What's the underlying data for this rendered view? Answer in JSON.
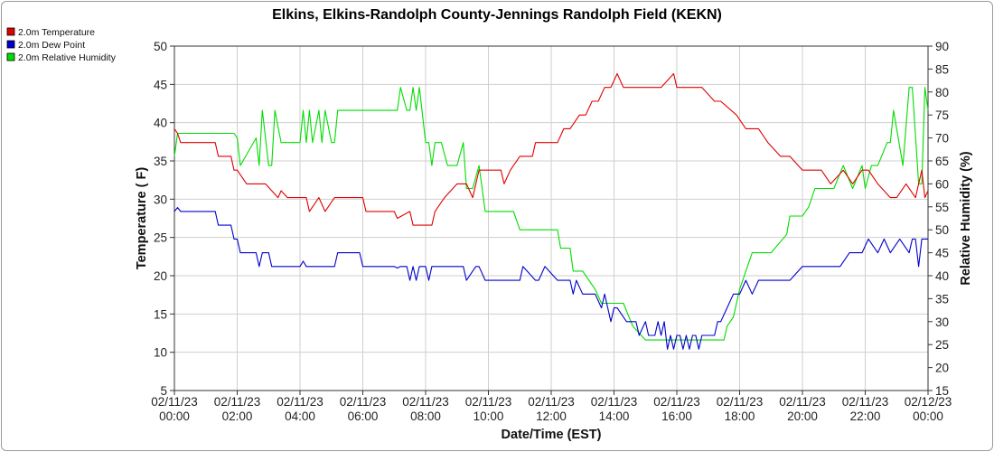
{
  "chart_data": {
    "type": "line",
    "title": "Elkins, Elkins-Randolph County-Jennings Randolph Field (KEKN)",
    "xlabel": "Date/Time (EST)",
    "ylabel": "Temperature ( F)",
    "y2label": "Relative Humidity (%)",
    "xlim": [
      0,
      24
    ],
    "ylim": [
      5,
      50
    ],
    "y2lim": [
      15,
      90
    ],
    "xticks": [
      {
        "x": 0,
        "date": "02/11/23",
        "time": "00:00"
      },
      {
        "x": 2,
        "date": "02/11/23",
        "time": "02:00"
      },
      {
        "x": 4,
        "date": "02/11/23",
        "time": "04:00"
      },
      {
        "x": 6,
        "date": "02/11/23",
        "time": "06:00"
      },
      {
        "x": 8,
        "date": "02/11/23",
        "time": "08:00"
      },
      {
        "x": 10,
        "date": "02/11/23",
        "time": "10:00"
      },
      {
        "x": 12,
        "date": "02/11/23",
        "time": "12:00"
      },
      {
        "x": 14,
        "date": "02/11/23",
        "time": "14:00"
      },
      {
        "x": 16,
        "date": "02/11/23",
        "time": "16:00"
      },
      {
        "x": 18,
        "date": "02/11/23",
        "time": "18:00"
      },
      {
        "x": 20,
        "date": "02/11/23",
        "time": "20:00"
      },
      {
        "x": 22,
        "date": "02/11/23",
        "time": "22:00"
      },
      {
        "x": 24,
        "date": "02/12/23",
        "time": "00:00"
      }
    ],
    "yticks": [
      5,
      10,
      15,
      20,
      25,
      30,
      35,
      40,
      45,
      50
    ],
    "y2ticks": [
      15,
      20,
      25,
      30,
      35,
      40,
      45,
      50,
      55,
      60,
      65,
      70,
      75,
      80,
      85,
      90
    ],
    "grid": true,
    "legend_position": "top-left",
    "series": [
      {
        "name": "2.0m Temperature",
        "color": "#e00000",
        "axis": "left",
        "x": [
          0,
          0.1,
          0.2,
          1.3,
          1.4,
          1.8,
          1.9,
          2.0,
          2.3,
          2.9,
          3.3,
          3.4,
          3.6,
          4.2,
          4.3,
          4.6,
          4.8,
          5.1,
          5.3,
          6.0,
          6.1,
          7.0,
          7.1,
          7.5,
          7.6,
          7.7,
          8.2,
          8.3,
          8.6,
          9.0,
          9.3,
          9.5,
          9.7,
          9.9,
          10.0,
          10.4,
          10.5,
          10.7,
          11.0,
          11.2,
          11.4,
          11.5,
          11.9,
          12.2,
          12.4,
          12.6,
          12.9,
          13.1,
          13.3,
          13.5,
          13.7,
          13.9,
          14.1,
          14.3,
          14.7,
          15.1,
          15.5,
          15.9,
          16.0,
          16.2,
          16.6,
          16.8,
          17.2,
          17.4,
          17.9,
          18.2,
          18.4,
          18.6,
          18.9,
          19.3,
          19.6,
          20.0,
          20.3,
          20.6,
          20.9,
          21.3,
          21.6,
          21.9,
          22.1,
          22.4,
          22.8,
          23.0,
          23.3,
          23.6,
          23.8,
          23.9,
          24.0
        ],
        "values": [
          39.2,
          38.6,
          37.4,
          37.4,
          35.6,
          35.6,
          33.8,
          33.8,
          32.0,
          32.0,
          30.2,
          31.1,
          30.2,
          30.2,
          28.4,
          30.2,
          28.4,
          30.2,
          30.2,
          30.2,
          28.4,
          28.4,
          27.5,
          28.4,
          26.6,
          26.6,
          26.6,
          28.4,
          30.2,
          32.0,
          32.0,
          30.2,
          33.8,
          33.8,
          33.8,
          33.8,
          32.0,
          33.8,
          35.6,
          35.6,
          35.6,
          37.4,
          37.4,
          37.4,
          39.2,
          39.2,
          41.0,
          41.0,
          42.8,
          42.8,
          44.6,
          44.6,
          46.4,
          44.6,
          44.6,
          44.6,
          44.6,
          46.4,
          44.6,
          44.6,
          44.6,
          44.6,
          42.8,
          42.8,
          41.0,
          39.2,
          39.2,
          39.2,
          37.4,
          35.6,
          35.6,
          33.8,
          33.8,
          33.8,
          32.0,
          33.8,
          32.0,
          33.8,
          33.8,
          32.0,
          30.2,
          30.2,
          32.0,
          30.2,
          33.8,
          30.2,
          31.1
        ]
      },
      {
        "name": "2.0m Dew Point",
        "color": "#0000cc",
        "axis": "left",
        "x": [
          0,
          0.1,
          0.2,
          1.3,
          1.4,
          1.8,
          1.9,
          2.0,
          2.1,
          2.6,
          2.7,
          2.8,
          3.0,
          3.1,
          3.2,
          3.5,
          3.6,
          4.0,
          4.1,
          4.2,
          4.3,
          5.0,
          5.1,
          5.2,
          5.5,
          5.6,
          5.9,
          6.0,
          6.1,
          7.0,
          7.1,
          7.2,
          7.4,
          7.5,
          7.6,
          7.7,
          7.8,
          8.0,
          8.1,
          8.2,
          8.3,
          8.5,
          8.7,
          9.2,
          9.3,
          9.6,
          9.7,
          9.9,
          10.0,
          10.5,
          10.6,
          10.8,
          11.0,
          11.1,
          11.5,
          11.6,
          11.8,
          12.2,
          12.6,
          12.7,
          12.8,
          13.0,
          13.2,
          13.4,
          13.6,
          13.7,
          13.9,
          14.0,
          14.1,
          14.4,
          14.7,
          14.8,
          15.0,
          15.1,
          15.2,
          15.3,
          15.4,
          15.5,
          15.6,
          15.7,
          15.8,
          15.9,
          16.0,
          16.1,
          16.2,
          16.3,
          16.4,
          16.5,
          16.6,
          16.7,
          16.8,
          17.0,
          17.2,
          17.3,
          17.4,
          17.6,
          17.8,
          17.9,
          18.0,
          18.2,
          18.4,
          18.6,
          19.0,
          19.5,
          19.6,
          20.0,
          20.5,
          20.8,
          21.2,
          21.5,
          21.9,
          22.1,
          22.4,
          22.6,
          22.8,
          23.1,
          23.4,
          23.5,
          23.6,
          23.7,
          23.8,
          24.0
        ],
        "values": [
          28.4,
          28.9,
          28.4,
          28.4,
          26.6,
          26.6,
          24.8,
          24.8,
          23.0,
          23.0,
          21.2,
          23.0,
          23.0,
          21.2,
          21.2,
          21.2,
          21.2,
          21.2,
          21.9,
          21.2,
          21.2,
          21.2,
          21.2,
          23.0,
          23.0,
          23.0,
          23.0,
          21.2,
          21.2,
          21.2,
          21.0,
          21.2,
          21.2,
          19.4,
          21.2,
          19.4,
          21.2,
          21.2,
          19.4,
          21.2,
          21.2,
          21.2,
          21.2,
          21.2,
          19.4,
          21.2,
          21.2,
          19.4,
          19.4,
          19.4,
          19.4,
          19.4,
          19.4,
          21.2,
          19.4,
          19.4,
          21.2,
          19.4,
          19.4,
          17.6,
          19.4,
          17.6,
          17.6,
          17.6,
          15.8,
          17.6,
          14.0,
          15.8,
          15.8,
          14.0,
          14.0,
          12.2,
          14.0,
          12.2,
          12.2,
          12.2,
          14.0,
          12.2,
          14.0,
          10.4,
          12.2,
          10.4,
          12.2,
          12.2,
          10.4,
          12.2,
          10.4,
          12.2,
          12.2,
          10.4,
          12.2,
          12.2,
          12.2,
          14.0,
          14.0,
          15.8,
          17.6,
          17.6,
          17.6,
          19.4,
          17.6,
          19.4,
          19.4,
          19.4,
          19.4,
          21.2,
          21.2,
          21.2,
          21.2,
          23.0,
          23.0,
          24.8,
          23.0,
          24.8,
          23.0,
          24.8,
          23.0,
          24.8,
          24.8,
          21.2,
          24.8,
          24.8
        ]
      },
      {
        "name": "2.0m Relative Humidity",
        "color": "#00dd00",
        "axis": "right",
        "x": [
          0,
          0.1,
          0.2,
          1.3,
          1.4,
          1.9,
          2.0,
          2.1,
          2.6,
          2.7,
          2.8,
          3.0,
          3.1,
          3.2,
          3.4,
          3.5,
          3.6,
          4.0,
          4.1,
          4.2,
          4.3,
          4.4,
          4.6,
          4.7,
          4.8,
          5.0,
          5.1,
          5.2,
          5.5,
          5.6,
          5.9,
          6.0,
          6.1,
          7.0,
          7.1,
          7.2,
          7.4,
          7.5,
          7.6,
          7.7,
          7.8,
          8.0,
          8.1,
          8.2,
          8.3,
          8.5,
          8.7,
          9.0,
          9.2,
          9.3,
          9.5,
          9.7,
          9.9,
          10.0,
          10.5,
          10.6,
          10.8,
          11.0,
          11.2,
          11.5,
          11.6,
          12.2,
          12.3,
          12.6,
          12.7,
          12.8,
          13.0,
          13.4,
          13.6,
          13.9,
          14.3,
          14.6,
          15.0,
          15.3,
          15.6,
          15.9,
          16.0,
          16.2,
          16.4,
          16.7,
          16.8,
          17.0,
          17.2,
          17.5,
          17.6,
          17.8,
          17.9,
          18.0,
          18.2,
          18.4,
          18.6,
          19.0,
          19.5,
          19.6,
          20.0,
          20.2,
          20.4,
          20.8,
          21.0,
          21.3,
          21.6,
          21.9,
          22.0,
          22.2,
          22.4,
          22.7,
          22.8,
          22.9,
          23.2,
          23.4,
          23.5,
          23.7,
          23.8,
          23.9,
          24.0
        ],
        "values": [
          66,
          71,
          71,
          71,
          71,
          71,
          70,
          64,
          70,
          64,
          76,
          64,
          64,
          76,
          69,
          69,
          69,
          69,
          76,
          69,
          76,
          69,
          76,
          69,
          76,
          69,
          69,
          76,
          76,
          76,
          76,
          76,
          76,
          76,
          76,
          81,
          76,
          76,
          81,
          76,
          81,
          69,
          69,
          64,
          69,
          69,
          64,
          64,
          69,
          59,
          59,
          64,
          54,
          54,
          54,
          54,
          54,
          50,
          50,
          50,
          50,
          50,
          46,
          46,
          41,
          41,
          41,
          37,
          34,
          34,
          34,
          29,
          26,
          26,
          26,
          26,
          26,
          26,
          26,
          26,
          26,
          26,
          26,
          26,
          29,
          31,
          34,
          37,
          41,
          45,
          45,
          45,
          49,
          53,
          53,
          55,
          59,
          59,
          59,
          64,
          59,
          64,
          59,
          64,
          64,
          69,
          69,
          76,
          64,
          81,
          81,
          60,
          60,
          81,
          76
        ]
      }
    ]
  }
}
